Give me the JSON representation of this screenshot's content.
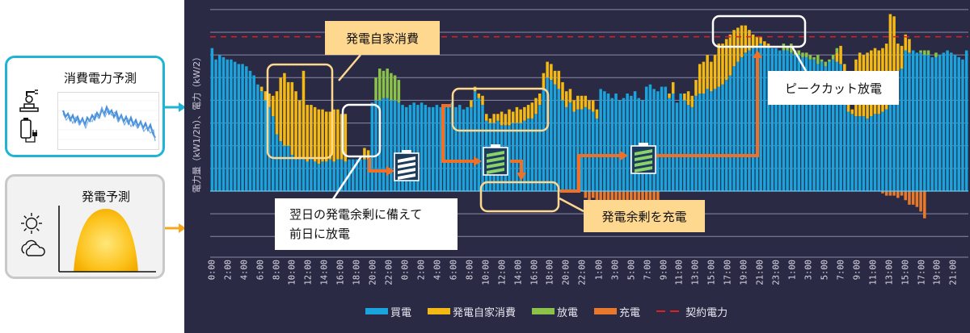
{
  "left_panel": {
    "consumption_forecast": {
      "title": "消費電力予測",
      "icons": [
        "robot-arm-icon",
        "battery-plug-icon"
      ],
      "border_color": "#1fb3d4"
    },
    "generation_forecast": {
      "title": "発電予測",
      "icons": [
        "sun-icon",
        "cloud-icon"
      ],
      "border_color": "#c8c8c8"
    }
  },
  "annotations": {
    "self_consumption": "発電自家消費",
    "prep_discharge_line1": "翌日の発電余剰に備えて",
    "prep_discharge_line2": "前日に放電",
    "charge_surplus": "発電余剰を充電",
    "peak_cut": "ピークカット放電"
  },
  "chart_data": {
    "type": "bar",
    "stacked": true,
    "title": "",
    "ylabel": "電力量（kW1/2h）、電力（kW/2）",
    "xlabel": "",
    "x_tick_labels": [
      "0:00",
      "2:00",
      "4:00",
      "6:00",
      "8:00",
      "10:00",
      "12:00",
      "14:00",
      "16:00",
      "18:00",
      "20:00",
      "22:00",
      "0:00",
      "2:00",
      "4:00",
      "6:00",
      "8:00",
      "10:00",
      "12:00",
      "14:00",
      "16:00",
      "18:00",
      "20:00",
      "22:00",
      "1:00",
      "3:00",
      "5:00",
      "7:00",
      "9:00",
      "11:00",
      "13:00",
      "15:00",
      "17:00",
      "19:00",
      "21:00",
      "23:00",
      "1:00",
      "3:00",
      "5:00",
      "7:00",
      "9:00",
      "11:00",
      "13:00",
      "15:00",
      "17:00",
      "19:00",
      "21:00"
    ],
    "ylim": [
      -2.2,
      8.0
    ],
    "grid": true,
    "legend_position": "bottom",
    "contract_power": 6.8,
    "colors": {
      "grid_purchase": "#1aa3dc",
      "solar_self_use": "#f5b914",
      "discharge": "#8bc34a",
      "charge": "#e8792c",
      "contract": "#e02020"
    },
    "series": [
      {
        "name": "買電",
        "values": [
          6.3,
          5.8,
          6.0,
          5.9,
          5.8,
          5.8,
          5.7,
          5.6,
          5.6,
          5.5,
          5.3,
          5.1,
          4.7,
          4.4,
          4.0,
          3.7,
          3.3,
          2.5,
          2.2,
          2.0,
          2.0,
          1.6,
          1.4,
          1.4,
          1.4,
          1.3,
          1.5,
          1.3,
          1.2,
          1.3,
          1.3,
          1.4,
          1.3,
          1.4,
          1.4,
          1.3,
          1.4,
          1.4,
          1.4,
          1.4,
          1.4,
          1.4,
          3.9,
          4.0,
          4.0,
          4.1,
          4.1,
          4.0,
          4.0,
          3.9,
          3.8,
          3.7,
          3.8,
          3.9,
          3.8,
          3.9,
          3.8,
          3.7,
          3.7,
          3.8,
          3.7,
          3.7,
          3.8,
          3.9,
          3.7,
          3.8,
          3.6,
          3.7,
          3.7,
          4.4,
          4.1,
          3.8,
          3.1,
          3.0,
          3.0,
          3.1,
          2.9,
          2.9,
          2.9,
          3.0,
          3.0,
          3.0,
          3.1,
          3.2,
          3.2,
          3.4,
          3.8,
          4.5,
          5.0,
          4.9,
          4.7,
          4.5,
          4.0,
          3.7,
          3.9,
          3.5,
          3.6,
          3.6,
          3.7,
          3.6,
          3.5,
          3.2,
          4.5,
          4.4,
          4.3,
          4.1,
          4.3,
          4.0,
          4.1,
          4.3,
          4.2,
          4.4,
          4.1,
          4.0,
          4.6,
          4.7,
          4.5,
          4.4,
          4.6,
          4.6,
          4.1,
          4.3,
          3.9,
          4.3,
          4.0,
          3.8,
          3.7,
          4.2,
          4.3,
          4.3,
          4.5,
          4.4,
          4.5,
          4.6,
          4.7,
          4.9,
          5.1,
          5.5,
          5.7,
          5.9,
          6.1,
          6.2,
          6.3,
          6.4,
          6.5,
          6.4,
          6.4,
          6.3,
          6.3,
          6.2,
          6.2,
          6.2,
          6.1,
          6.0,
          6.0,
          5.9,
          5.9,
          5.8,
          5.8,
          5.6,
          5.7,
          5.5,
          5.7,
          5.8,
          5.7,
          5.6,
          5.0,
          3.5,
          3.4,
          3.3,
          3.3,
          3.3,
          3.2,
          3.3,
          3.4,
          3.4,
          3.5,
          3.6,
          5.0,
          5.1,
          5.3,
          5.4,
          6.2,
          6.1,
          6.2,
          6.1,
          6.1,
          6.0,
          6.0,
          5.9,
          5.9,
          6.0,
          6.1,
          6.2,
          6.1,
          6.0,
          5.9,
          5.8,
          6.2
        ]
      },
      {
        "name": "発電自家消費",
        "values": [
          0,
          0,
          0,
          0,
          0,
          0,
          0,
          0,
          0,
          0,
          0,
          0,
          0,
          0.2,
          0.4,
          0.6,
          0.9,
          1.9,
          2.8,
          3.2,
          2.8,
          3.2,
          3.0,
          2.6,
          3.9,
          2.5,
          2.3,
          2.4,
          2.4,
          2.3,
          2.2,
          2.1,
          2.3,
          2.2,
          2.0,
          2.1,
          0,
          0,
          0,
          0,
          0.5,
          0.4,
          0,
          0,
          0,
          0,
          0,
          0,
          0,
          0,
          0,
          0,
          0,
          0,
          0,
          0,
          0,
          0,
          0,
          0,
          0,
          0,
          0,
          0,
          0,
          0,
          0,
          0,
          0.3,
          0.2,
          0.2,
          0.4,
          0.3,
          0.2,
          0.4,
          0.3,
          0.6,
          0.5,
          0.7,
          0.5,
          0.7,
          0.6,
          0.6,
          0.6,
          0.7,
          0.7,
          0.5,
          0.7,
          0.7,
          0.7,
          0.6,
          0.8,
          0.8,
          0.7,
          0.6,
          0.5,
          0.6,
          0.6,
          0.5,
          0.4,
          0.5,
          0.4,
          0,
          0,
          0,
          0,
          0,
          0,
          0,
          0,
          0,
          0,
          0,
          0,
          0,
          0,
          0,
          0,
          0,
          0,
          0.2,
          0.5,
          0,
          0,
          0.3,
          0.6,
          0.5,
          0.7,
          1.3,
          1.4,
          1.5,
          1.3,
          1.5,
          1.9,
          1.8,
          1.8,
          1.8,
          1.6,
          1.5,
          1.4,
          1.2,
          0.9,
          0.6,
          0.4,
          0.3,
          0.2,
          0.1,
          0,
          0,
          0,
          0,
          0,
          0,
          0,
          0,
          0,
          0,
          0,
          0,
          0,
          0,
          0,
          0,
          0,
          0.4,
          0.8,
          0.6,
          0.4,
          0.2,
          2.5,
          2.8,
          2.7,
          2.9,
          2.9,
          2.9,
          2.8,
          2.8,
          2.9,
          2.8,
          2.6,
          1.2,
          1.0,
          0.7,
          0.6,
          0,
          0,
          0,
          0,
          0,
          0,
          0,
          0,
          0,
          0,
          0,
          0,
          0,
          0,
          0,
          0,
          0
        ]
      },
      {
        "name": "放電",
        "values": [
          0,
          0,
          0,
          0,
          0,
          0,
          0,
          0,
          0,
          0,
          0,
          0,
          0,
          0,
          0,
          0,
          0,
          0,
          0,
          0,
          0,
          0,
          0,
          0,
          0,
          0,
          0,
          0,
          0,
          0,
          0,
          0,
          0,
          0,
          0,
          0,
          0,
          0,
          0,
          0,
          0,
          0,
          0,
          1.0,
          1.4,
          1.2,
          1.3,
          1.2,
          1.1,
          1.0,
          0,
          0,
          0,
          0,
          0,
          0,
          0,
          0,
          0,
          0,
          0,
          0,
          0,
          0,
          0,
          0,
          0,
          0,
          0,
          0,
          0,
          0,
          0,
          0,
          0,
          0,
          0,
          0,
          0,
          0,
          0,
          0,
          0,
          0,
          0,
          0,
          0,
          0,
          0,
          0,
          0,
          0,
          0,
          0,
          0,
          0,
          0,
          0,
          0,
          0,
          0,
          0,
          0,
          0,
          0,
          0,
          0,
          0,
          0,
          0,
          0,
          0,
          0,
          0,
          0,
          0,
          0,
          0,
          0,
          0,
          0,
          0,
          0,
          0,
          0,
          0,
          0,
          0,
          0,
          0,
          0,
          0,
          0,
          0,
          0,
          0,
          0,
          0,
          0,
          0,
          0,
          0,
          0,
          0,
          0,
          0,
          0,
          0,
          0,
          0,
          0.3,
          0.2,
          0.4,
          0.2,
          0.2,
          0.2,
          0.2,
          0.2,
          0.1,
          0.4,
          0.1,
          0.2,
          0.1,
          0.2,
          0.2,
          0,
          0,
          0,
          0,
          0,
          0,
          0,
          0,
          0,
          0,
          0,
          0,
          0,
          0,
          0,
          0,
          0,
          0,
          0,
          0,
          0,
          0.1,
          0.2,
          0.2,
          0,
          0.2,
          0,
          0,
          0,
          0,
          0,
          0,
          0,
          0,
          0,
          0,
          0,
          0.2
        ]
      },
      {
        "name": "充電",
        "values": [
          0,
          0,
          0,
          0,
          0,
          0,
          0,
          0,
          0,
          0,
          0,
          0,
          0,
          0,
          0,
          0,
          0,
          0,
          0,
          0,
          0,
          0,
          0,
          0,
          0,
          0,
          0,
          0,
          0,
          0,
          0,
          0,
          0,
          0,
          0,
          0,
          0,
          0,
          0,
          0,
          0,
          0,
          0,
          0,
          0,
          0,
          0,
          0,
          0,
          0,
          0,
          0,
          0,
          0,
          0,
          0,
          0,
          0,
          0,
          0,
          0,
          0,
          0,
          0,
          0,
          0,
          0,
          0,
          0,
          0,
          0,
          0,
          0,
          0,
          0,
          0,
          0,
          0,
          0,
          0,
          0,
          0,
          0,
          0,
          0,
          0,
          0,
          0,
          0,
          0,
          0,
          0,
          0,
          0,
          0,
          0,
          0,
          0,
          -0.3,
          -0.4,
          -0.3,
          -0.7,
          -0.9,
          -1.1,
          -1.0,
          -1.2,
          -1.2,
          -1.1,
          -1.0,
          -0.9,
          -0.8,
          -0.8,
          -0.7,
          -0.7,
          -0.6,
          -0.6,
          -0.5,
          -0.4,
          0,
          0,
          0,
          0,
          0,
          0,
          0,
          0,
          0,
          0,
          0,
          0,
          0,
          0,
          0,
          0,
          0,
          0,
          0,
          0,
          0,
          0,
          0,
          0,
          0,
          0,
          0,
          0,
          0,
          0,
          0,
          0,
          0,
          0,
          0,
          0,
          0,
          0,
          0,
          0,
          0,
          0,
          0,
          0,
          0,
          0,
          0,
          0,
          0,
          0,
          0,
          0,
          0,
          0,
          0,
          0,
          0,
          0,
          -0.1,
          -0.2,
          -0.2,
          -0.2,
          -0.3,
          -0.2,
          -0.4,
          -0.6,
          -0.6,
          -0.7,
          -0.9,
          -1.2,
          0,
          0,
          0,
          0,
          0,
          0,
          0,
          0,
          0,
          0,
          0,
          0,
          0,
          0,
          0,
          0,
          0,
          0,
          0,
          0,
          0,
          0,
          0,
          0
        ]
      },
      {
        "name": "契約電力",
        "type": "line",
        "style": "dashed",
        "values_constant": 6.8
      }
    ],
    "legend": [
      {
        "label": "買電",
        "color": "#1aa3dc",
        "kind": "swatch"
      },
      {
        "label": "発電自家消費",
        "color": "#f5b914",
        "kind": "swatch"
      },
      {
        "label": "放電",
        "color": "#8bc34a",
        "kind": "swatch"
      },
      {
        "label": "充電",
        "color": "#e8792c",
        "kind": "swatch"
      },
      {
        "label": "契約電力",
        "color": "#e02020",
        "kind": "dash"
      }
    ]
  }
}
